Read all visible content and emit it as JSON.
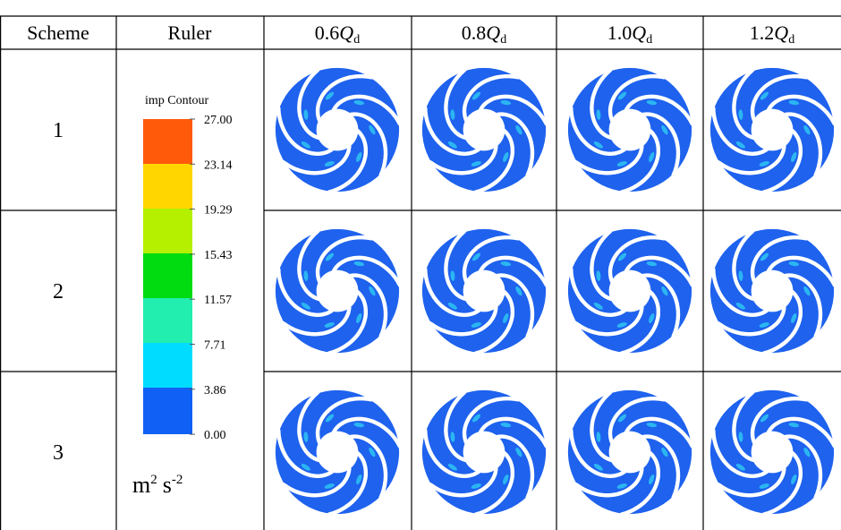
{
  "table": {
    "header": [
      "Scheme",
      "Ruler"
    ],
    "flow_columns": [
      {
        "value": "0.6",
        "symbol": "Q",
        "subscript": "d"
      },
      {
        "value": "0.8",
        "symbol": "Q",
        "subscript": "d"
      },
      {
        "value": "1.0",
        "symbol": "Q",
        "subscript": "d"
      },
      {
        "value": "1.2",
        "symbol": "Q",
        "subscript": "d"
      }
    ],
    "schemes": [
      "1",
      "2",
      "3"
    ],
    "ruler": {
      "title": "imp Contour",
      "labels": [
        "27.00",
        "23.14",
        "19.29",
        "15.43",
        "11.57",
        "7.71",
        "3.86",
        "0.00"
      ],
      "unit": {
        "base1": "m",
        "exp1": "2",
        "base2": "s",
        "exp2": "-2"
      }
    }
  }
}
